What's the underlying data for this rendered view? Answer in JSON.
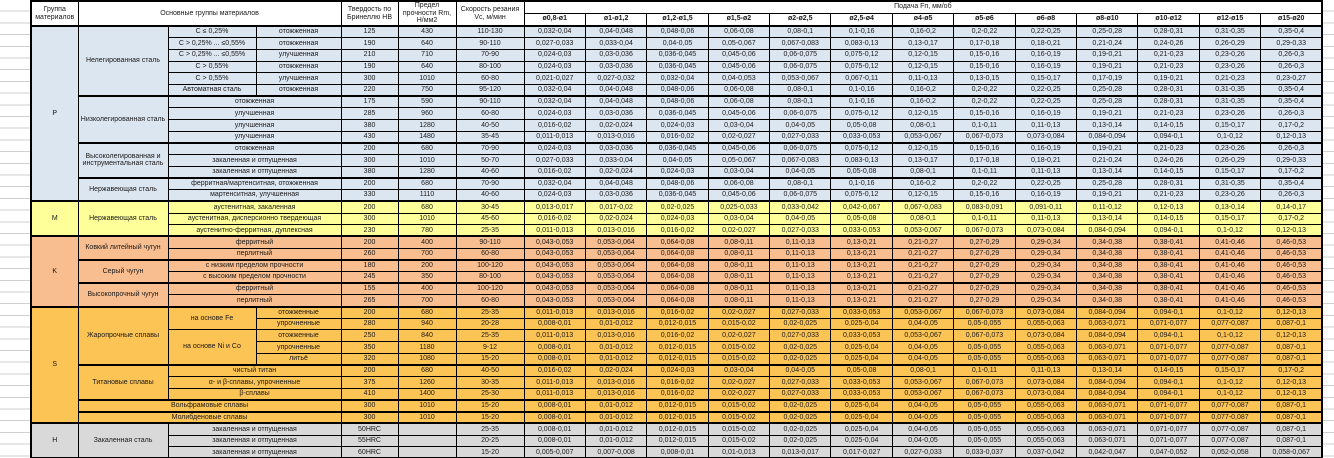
{
  "header": {
    "group": "Группа материалов",
    "material": "Основные группы материалов",
    "hardness": "Твердость по Бринеллю HB",
    "strength": "Предел прочности Rm, Н/мм2",
    "speed": "Скорость резания Vc, м/мин",
    "feed": "Подача Fп, мм/об",
    "diameters": [
      "ø0,8-ø1",
      "ø1-ø1,2",
      "ø1,2-ø1,5",
      "ø1,5-ø2",
      "ø2-ø2,5",
      "ø2,5-ø4",
      "ø4-ø5",
      "ø5-ø6",
      "ø6-ø8",
      "ø8-ø10",
      "ø10-ø12",
      "ø12-ø15",
      "ø15-ø20"
    ]
  },
  "colors": {
    "P": "#dce6f1",
    "M": "#ffff99",
    "K": "#f8be8f",
    "S": "#fcc355",
    "H": "#d9d9d9"
  },
  "feed_patterns": {
    "A": [
      "0,032-0,04",
      "0,04-0,048",
      "0,048-0,06",
      "0,06-0,08",
      "0,08-0,1",
      "0,1-0,16",
      "0,16-0,2",
      "0,2-0,22",
      "0,22-0,25",
      "0,25-0,28",
      "0,28-0,31",
      "0,31-0,35",
      "0,35-0,4"
    ],
    "B": [
      "0,027-0,033",
      "0,033-0,04",
      "0,04-0,05",
      "0,05-0,067",
      "0,067-0,083",
      "0,083-0,13",
      "0,13-0,17",
      "0,17-0,18",
      "0,18-0,21",
      "0,21-0,24",
      "0,24-0,26",
      "0,26-0,29",
      "0,29-0,33"
    ],
    "C": [
      "0,024-0,03",
      "0,03-0,036",
      "0,036-0,045",
      "0,045-0,06",
      "0,06-0,075",
      "0,075-0,12",
      "0,12-0,15",
      "0,15-0,16",
      "0,16-0,19",
      "0,19-0,21",
      "0,21-0,23",
      "0,23-0,26",
      "0,26-0,3"
    ],
    "D": [
      "0,021-0,027",
      "0,027-0,032",
      "0,032-0,04",
      "0,04-0,053",
      "0,053-0,067",
      "0,067-0,11",
      "0,11-0,13",
      "0,13-0,15",
      "0,15-0,17",
      "0,17-0,19",
      "0,19-0,21",
      "0,21-0,23",
      "0,23-0,27"
    ],
    "E": [
      "0,016-0,02",
      "0,02-0,024",
      "0,024-0,03",
      "0,03-0,04",
      "0,04-0,05",
      "0,05-0,08",
      "0,08-0,1",
      "0,1-0,11",
      "0,11-0,13",
      "0,13-0,14",
      "0,14-0,15",
      "0,15-0,17",
      "0,17-0,2"
    ],
    "F": [
      "0,011-0,013",
      "0,013-0,016",
      "0,016-0,02",
      "0,02-0,027",
      "0,027-0,033",
      "0,033-0,053",
      "0,053-0,067",
      "0,067-0,073",
      "0,073-0,084",
      "0,084-0,094",
      "0,094-0,1",
      "0,1-0,12",
      "0,12-0,13"
    ],
    "G": [
      "0,013-0,017",
      "0,017-0,02",
      "0,02-0,025",
      "0,025-0,033",
      "0,033-0,042",
      "0,042-0,067",
      "0,067-0,083",
      "0,083-0,091",
      "0,091-0,11",
      "0,11-0,12",
      "0,12-0,13",
      "0,13-0,14",
      "0,14-0,17"
    ],
    "KF": [
      "0,043-0,053",
      "0,053-0,064",
      "0,064-0,08",
      "0,08-0,11",
      "0,11-0,13",
      "0,13-0,21",
      "0,21-0,27",
      "0,27-0,29",
      "0,29-0,34",
      "0,34-0,38",
      "0,38-0,41",
      "0,41-0,46",
      "0,46-0,53"
    ],
    "H8": [
      "0,008-0,01",
      "0,01-0,012",
      "0,012-0,015",
      "0,015-0,02",
      "0,02-0,025",
      "0,025-0,04",
      "0,04-0,05",
      "0,05-0,055",
      "0,055-0,063",
      "0,063-0,071",
      "0,071-0,077",
      "0,077-0,087",
      "0,087-0,1"
    ],
    "Z": [
      "0,005-0,007",
      "0,007-0,008",
      "0,008-0,01",
      "0,01-0,013",
      "0,013-0,017",
      "0,017-0,027",
      "0,027-0,033",
      "0,033-0,037",
      "0,037-0,042",
      "0,042-0,047",
      "0,047-0,052",
      "0,052-0,058",
      "0,058-0,067"
    ]
  },
  "rows": [
    {
      "grp": "P",
      "g": {
        "t": "P",
        "rs": 15
      },
      "m": {
        "t": "Нелегированная сталь",
        "rs": 6
      },
      "s": {
        "t": "C ≤ 0,25%"
      },
      "tr": {
        "t": "отожженная"
      },
      "hb": "125",
      "rm": "430",
      "vc": "110-130",
      "f": "A"
    },
    {
      "grp": "P",
      "s": {
        "t": "C > 0,25% ... ≤0,55%"
      },
      "tr": {
        "t": "отожженная"
      },
      "hb": "190",
      "rm": "640",
      "vc": "90-110",
      "f": "B"
    },
    {
      "grp": "P",
      "s": {
        "t": "C > 0,25% ... ≤0,55%"
      },
      "tr": {
        "t": "улучшенная"
      },
      "hb": "210",
      "rm": "710",
      "vc": "70-90",
      "f": "C"
    },
    {
      "grp": "P",
      "s": {
        "t": "C > 0,55%"
      },
      "tr": {
        "t": "отожженная"
      },
      "hb": "190",
      "rm": "640",
      "vc": "80-100",
      "f": "C"
    },
    {
      "grp": "P",
      "s": {
        "t": "C > 0,55%"
      },
      "tr": {
        "t": "улучшенная"
      },
      "hb": "300",
      "rm": "1010",
      "vc": "60-80",
      "f": "D"
    },
    {
      "grp": "P",
      "s": {
        "t": "Автоматная сталь"
      },
      "tr": {
        "t": "отожженная"
      },
      "hb": "220",
      "rm": "750",
      "vc": "95-120",
      "f": "A"
    },
    {
      "grp": "P",
      "m": {
        "t": "Низколегированная сталь",
        "rs": 4
      },
      "tr": {
        "t": "отожженная",
        "cs": 2
      },
      "hb": "175",
      "rm": "590",
      "vc": "90-110",
      "f": "A"
    },
    {
      "grp": "P",
      "tr": {
        "t": "улучшенная",
        "cs": 2
      },
      "hb": "285",
      "rm": "960",
      "vc": "60-80",
      "f": "C"
    },
    {
      "grp": "P",
      "tr": {
        "t": "улучшенная",
        "cs": 2
      },
      "hb": "380",
      "rm": "1280",
      "vc": "40-50",
      "f": "E"
    },
    {
      "grp": "P",
      "tr": {
        "t": "улучшенная",
        "cs": 2
      },
      "hb": "430",
      "rm": "1480",
      "vc": "35-45",
      "f": "F"
    },
    {
      "grp": "P",
      "m": {
        "t": "Высоколегированная и инструментальная сталь",
        "rs": 3
      },
      "tr": {
        "t": "отожженная",
        "cs": 2
      },
      "hb": "200",
      "rm": "680",
      "vc": "70-90",
      "f": "C"
    },
    {
      "grp": "P",
      "tr": {
        "t": "закаленная и отпущенная",
        "cs": 2
      },
      "hb": "300",
      "rm": "1010",
      "vc": "50-70",
      "f": "B"
    },
    {
      "grp": "P",
      "tr": {
        "t": "закаленная и отпущенная",
        "cs": 2
      },
      "hb": "380",
      "rm": "1280",
      "vc": "40-60",
      "f": "E"
    },
    {
      "grp": "P",
      "m": {
        "t": "Нержавеющая сталь",
        "rs": 2
      },
      "tr": {
        "t": "ферритная/мартенситная, отожженная",
        "cs": 2
      },
      "hb": "200",
      "rm": "680",
      "vc": "70-90",
      "f": "A"
    },
    {
      "grp": "P",
      "tr": {
        "t": "мартенситная, улучшенная",
        "cs": 2
      },
      "hb": "330",
      "rm": "1110",
      "vc": "40-60",
      "f": "C"
    },
    {
      "grp": "M",
      "g": {
        "t": "M",
        "rs": 3
      },
      "m": {
        "t": "Нержавеющая сталь",
        "rs": 3
      },
      "tr": {
        "t": "аустенитная, закаленная",
        "cs": 2
      },
      "hb": "200",
      "rm": "680",
      "vc": "30-45",
      "f": "G"
    },
    {
      "grp": "M",
      "tr": {
        "t": "аустенитная, дисперсионно твердеющая",
        "cs": 2
      },
      "hb": "300",
      "rm": "1010",
      "vc": "45-60",
      "f": "E"
    },
    {
      "grp": "M",
      "tr": {
        "t": "аустенитно-ферритная, дуплексная",
        "cs": 2
      },
      "hb": "230",
      "rm": "780",
      "vc": "25-35",
      "f": "F"
    },
    {
      "grp": "K",
      "g": {
        "t": "K",
        "rs": 6
      },
      "m": {
        "t": "Ковкий литейный чугун",
        "rs": 2
      },
      "tr": {
        "t": "ферритный",
        "cs": 2
      },
      "hb": "200",
      "rm": "400",
      "vc": "90-110",
      "f": "KF"
    },
    {
      "grp": "K",
      "tr": {
        "t": "перлитный",
        "cs": 2
      },
      "hb": "260",
      "rm": "700",
      "vc": "60-80",
      "f": "KF"
    },
    {
      "grp": "K",
      "m": {
        "t": "Серый чугун",
        "rs": 2
      },
      "tr": {
        "t": "с низким пределом прочности",
        "cs": 2
      },
      "hb": "180",
      "rm": "200",
      "vc": "100-120",
      "f": "KF"
    },
    {
      "grp": "K",
      "tr": {
        "t": "с высоким пределом прочности",
        "cs": 2
      },
      "hb": "245",
      "rm": "350",
      "vc": "80-100",
      "f": "KF"
    },
    {
      "grp": "K",
      "m": {
        "t": "Высокопрочный чугун",
        "rs": 2
      },
      "tr": {
        "t": "ферритный",
        "cs": 2
      },
      "hb": "155",
      "rm": "400",
      "vc": "100-120",
      "f": "KF"
    },
    {
      "grp": "K",
      "tr": {
        "t": "перлитный",
        "cs": 2
      },
      "hb": "265",
      "rm": "700",
      "vc": "60-80",
      "f": "KF"
    },
    {
      "grp": "S",
      "g": {
        "t": "S",
        "rs": 10
      },
      "m": {
        "t": "Жаропрочные сплавы",
        "rs": 5
      },
      "s": {
        "t": "на основе Fe",
        "rs": 2
      },
      "tr": {
        "t": "отожженные"
      },
      "hb": "200",
      "rm": "680",
      "vc": "25-35",
      "f": "F"
    },
    {
      "grp": "S",
      "tr": {
        "t": "упрочненные"
      },
      "hb": "280",
      "rm": "940",
      "vc": "20-28",
      "f": "H8"
    },
    {
      "grp": "S",
      "s": {
        "t": "на основе Ni и Co",
        "rs": 3
      },
      "tr": {
        "t": "отожженные"
      },
      "hb": "250",
      "rm": "840",
      "vc": "25-35",
      "f": "F"
    },
    {
      "grp": "S",
      "tr": {
        "t": "упрочненные"
      },
      "hb": "350",
      "rm": "1180",
      "vc": "9-12",
      "f": "H8"
    },
    {
      "grp": "S",
      "tr": {
        "t": "литьё"
      },
      "hb": "320",
      "rm": "1080",
      "vc": "15-20",
      "f": "H8"
    },
    {
      "grp": "S",
      "m": {
        "t": "Титановые сплавы",
        "rs": 3
      },
      "tr": {
        "t": "чистый титан",
        "cs": 2
      },
      "hb": "200",
      "rm": "680",
      "vc": "40-50",
      "f": "E"
    },
    {
      "grp": "S",
      "tr": {
        "t": "α- и β-сплавы, упрочненные",
        "cs": 2
      },
      "hb": "375",
      "rm": "1260",
      "vc": "30-35",
      "f": "F"
    },
    {
      "grp": "S",
      "tr": {
        "t": "β-сплавы",
        "cs": 2
      },
      "hb": "410",
      "rm": "1400",
      "vc": "25-30",
      "f": "F"
    },
    {
      "grp": "S",
      "m": {
        "t": "Вольфрамовые сплавы",
        "rs": 1,
        "cs": 3
      },
      "hb": "300",
      "rm": "1010",
      "vc": "15-20",
      "f": "H8"
    },
    {
      "grp": "S",
      "m": {
        "t": "Молибденовые сплавы",
        "rs": 1,
        "cs": 3
      },
      "hb": "300",
      "rm": "1010",
      "vc": "15-20",
      "f": "H8"
    },
    {
      "grp": "H",
      "g": {
        "t": "H",
        "rs": 3
      },
      "m": {
        "t": "Закаленная сталь",
        "rs": 3
      },
      "tr": {
        "t": "закаленная и отпущенная",
        "cs": 2
      },
      "hb": "50HRC",
      "rm": "",
      "vc": "25-35",
      "f": "H8"
    },
    {
      "grp": "H",
      "tr": {
        "t": "закаленная и отпущенная",
        "cs": 2
      },
      "hb": "55HRC",
      "rm": "",
      "vc": "20-25",
      "f": "H8"
    },
    {
      "grp": "H",
      "tr": {
        "t": "закаленная и отпущенная",
        "cs": 2
      },
      "hb": "60HRC",
      "rm": "",
      "vc": "15-20",
      "f": "Z"
    }
  ]
}
